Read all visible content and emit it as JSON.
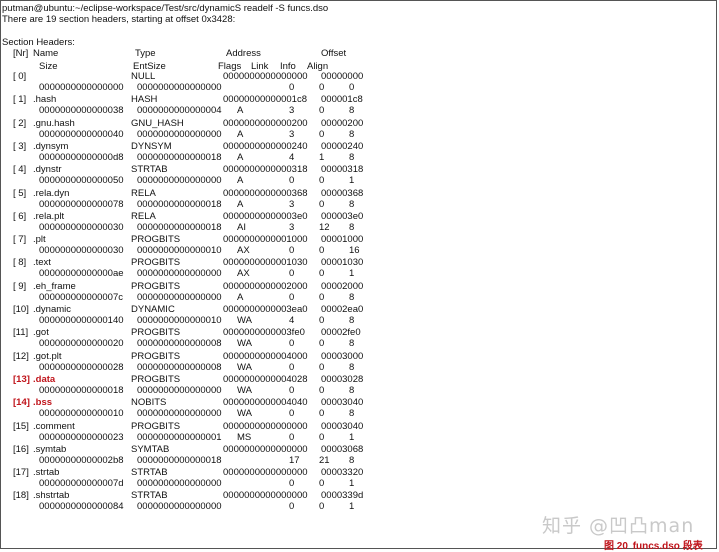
{
  "terminal": {
    "prompt": "putman@ubuntu:~/eclipse-workspace/Test/src/dynamicS readelf -S funcs.dso",
    "summary": "There are 19 section headers, starting at offset 0x3428:",
    "section_title": "Section Headers:"
  },
  "header": {
    "row1": {
      "nr": "[Nr]",
      "name": "Name",
      "type": "Type",
      "address": "Address",
      "offset": "Offset"
    },
    "row2": {
      "size": "Size",
      "entsize": "EntSize",
      "flags": "Flags",
      "link": "Link",
      "info": "Info",
      "align": "Align"
    }
  },
  "sections": [
    {
      "nr": "[ 0]",
      "name": "",
      "type": "NULL",
      "address": "0000000000000000",
      "offset": "00000000",
      "size": "0000000000000000",
      "entsize": "0000000000000000",
      "flags": "",
      "link": "0",
      "info": "0",
      "align": "0"
    },
    {
      "nr": "[ 1]",
      "name": ".hash",
      "type": "HASH",
      "address": "00000000000001c8",
      "offset": "000001c8",
      "size": "0000000000000038",
      "entsize": "0000000000000004",
      "flags": "A",
      "link": "3",
      "info": "0",
      "align": "8"
    },
    {
      "nr": "[ 2]",
      "name": ".gnu.hash",
      "type": "GNU_HASH",
      "address": "0000000000000200",
      "offset": "00000200",
      "size": "0000000000000040",
      "entsize": "0000000000000000",
      "flags": "A",
      "link": "3",
      "info": "0",
      "align": "8"
    },
    {
      "nr": "[ 3]",
      "name": ".dynsym",
      "type": "DYNSYM",
      "address": "0000000000000240",
      "offset": "00000240",
      "size": "00000000000000d8",
      "entsize": "0000000000000018",
      "flags": "A",
      "link": "4",
      "info": "1",
      "align": "8"
    },
    {
      "nr": "[ 4]",
      "name": ".dynstr",
      "type": "STRTAB",
      "address": "0000000000000318",
      "offset": "00000318",
      "size": "0000000000000050",
      "entsize": "0000000000000000",
      "flags": "A",
      "link": "0",
      "info": "0",
      "align": "1"
    },
    {
      "nr": "[ 5]",
      "name": ".rela.dyn",
      "type": "RELA",
      "address": "0000000000000368",
      "offset": "00000368",
      "size": "0000000000000078",
      "entsize": "0000000000000018",
      "flags": "A",
      "link": "3",
      "info": "0",
      "align": "8"
    },
    {
      "nr": "[ 6]",
      "name": ".rela.plt",
      "type": "RELA",
      "address": "00000000000003e0",
      "offset": "000003e0",
      "size": "0000000000000030",
      "entsize": "0000000000000018",
      "flags": "AI",
      "link": "3",
      "info": "12",
      "align": "8"
    },
    {
      "nr": "[ 7]",
      "name": ".plt",
      "type": "PROGBITS",
      "address": "0000000000001000",
      "offset": "00001000",
      "size": "0000000000000030",
      "entsize": "0000000000000010",
      "flags": "AX",
      "link": "0",
      "info": "0",
      "align": "16"
    },
    {
      "nr": "[ 8]",
      "name": ".text",
      "type": "PROGBITS",
      "address": "0000000000001030",
      "offset": "00001030",
      "size": "00000000000000ae",
      "entsize": "0000000000000000",
      "flags": "AX",
      "link": "0",
      "info": "0",
      "align": "1"
    },
    {
      "nr": "[ 9]",
      "name": ".eh_frame",
      "type": "PROGBITS",
      "address": "0000000000002000",
      "offset": "00002000",
      "size": "000000000000007c",
      "entsize": "0000000000000000",
      "flags": "A",
      "link": "0",
      "info": "0",
      "align": "8"
    },
    {
      "nr": "[10]",
      "name": ".dynamic",
      "type": "DYNAMIC",
      "address": "0000000000003ea0",
      "offset": "00002ea0",
      "size": "0000000000000140",
      "entsize": "0000000000000010",
      "flags": "WA",
      "link": "4",
      "info": "0",
      "align": "8"
    },
    {
      "nr": "[11]",
      "name": ".got",
      "type": "PROGBITS",
      "address": "0000000000003fe0",
      "offset": "00002fe0",
      "size": "0000000000000020",
      "entsize": "0000000000000008",
      "flags": "WA",
      "link": "0",
      "info": "0",
      "align": "8"
    },
    {
      "nr": "[12]",
      "name": ".got.plt",
      "type": "PROGBITS",
      "address": "0000000000004000",
      "offset": "00003000",
      "size": "0000000000000028",
      "entsize": "0000000000000008",
      "flags": "WA",
      "link": "0",
      "info": "0",
      "align": "8"
    },
    {
      "nr": "[13]",
      "name": ".data",
      "type": "PROGBITS",
      "address": "0000000000004028",
      "offset": "00003028",
      "size": "0000000000000018",
      "entsize": "0000000000000000",
      "flags": "WA",
      "link": "0",
      "info": "0",
      "align": "8",
      "highlight": true
    },
    {
      "nr": "[14]",
      "name": ".bss",
      "type": "NOBITS",
      "address": "0000000000004040",
      "offset": "00003040",
      "size": "0000000000000010",
      "entsize": "0000000000000000",
      "flags": "WA",
      "link": "0",
      "info": "0",
      "align": "8",
      "highlight": true
    },
    {
      "nr": "[15]",
      "name": ".comment",
      "type": "PROGBITS",
      "address": "0000000000000000",
      "offset": "00003040",
      "size": "0000000000000023",
      "entsize": "0000000000000001",
      "flags": "MS",
      "link": "0",
      "info": "0",
      "align": "1"
    },
    {
      "nr": "[16]",
      "name": ".symtab",
      "type": "SYMTAB",
      "address": "0000000000000000",
      "offset": "00003068",
      "size": "00000000000002b8",
      "entsize": "0000000000000018",
      "flags": "",
      "link": "17",
      "info": "21",
      "align": "8"
    },
    {
      "nr": "[17]",
      "name": ".strtab",
      "type": "STRTAB",
      "address": "0000000000000000",
      "offset": "00003320",
      "size": "000000000000007d",
      "entsize": "0000000000000000",
      "flags": "",
      "link": "0",
      "info": "0",
      "align": "1"
    },
    {
      "nr": "[18]",
      "name": ".shstrtab",
      "type": "STRTAB",
      "address": "0000000000000000",
      "offset": "0000339d",
      "size": "0000000000000084",
      "entsize": "0000000000000000",
      "flags": "",
      "link": "0",
      "info": "0",
      "align": "1"
    }
  ],
  "watermark": "知乎 @凹凸man",
  "caption": {
    "figure": "图 20",
    "name": "funcs.dso",
    "suffix": "段表"
  },
  "colors": {
    "highlight": "#c0141b",
    "watermark": "#c9c9c9"
  }
}
